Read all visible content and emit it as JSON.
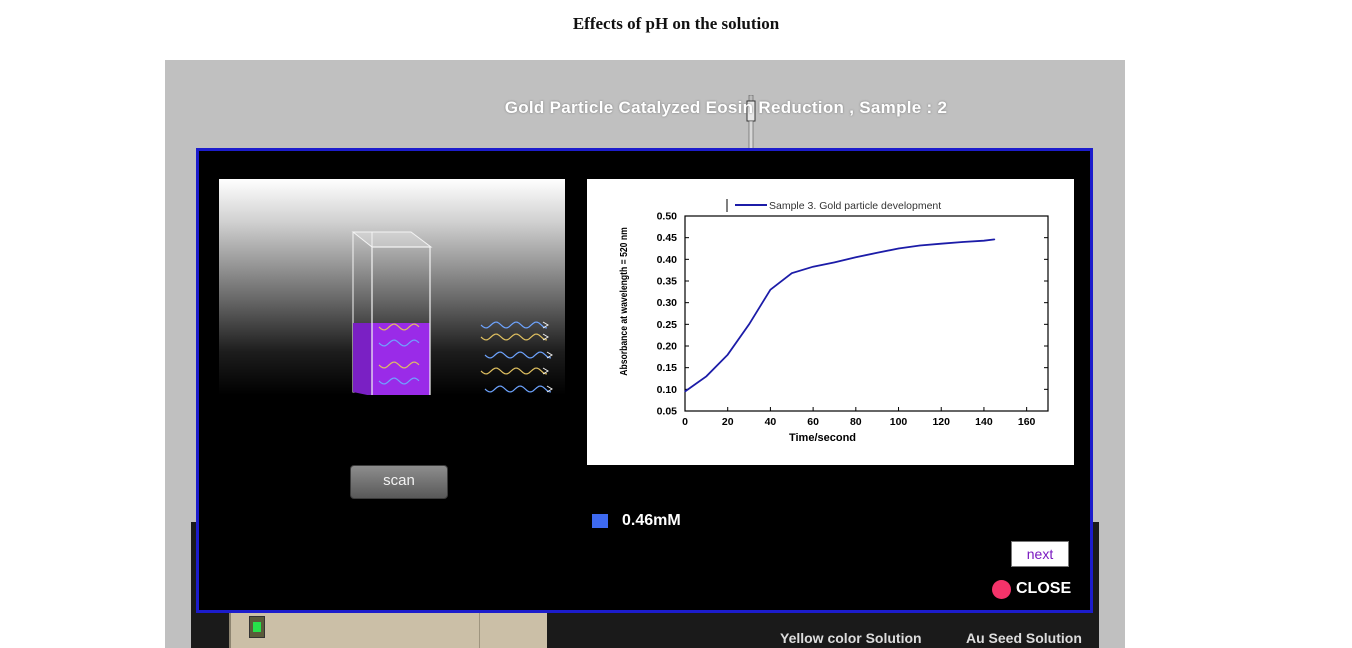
{
  "page": {
    "title": "Effects of pH on the solution"
  },
  "simulation": {
    "title": "Gold Particle Catalyzed Eosin Reduction , Sample : 2",
    "bench_labels": [
      "Yellow color Solution",
      "Au Seed Solution"
    ]
  },
  "popup": {
    "scan_label": "scan",
    "concentration_label": "0.46mM",
    "concentration_swatch_color": "#3e6af0",
    "next_label": "next",
    "close_label": "CLOSE",
    "solution_color": "#9a2be8",
    "border_color": "#1c1ccc"
  },
  "chart_data": {
    "type": "line",
    "title": "",
    "xlabel": "Time/second",
    "ylabel": "Absorbance at wavelength = 520 nm",
    "xlim": [
      0,
      170
    ],
    "ylim": [
      0.05,
      0.5
    ],
    "xticks": [
      0,
      20,
      40,
      60,
      80,
      100,
      120,
      140,
      160
    ],
    "yticks": [
      0.05,
      0.1,
      0.15,
      0.2,
      0.25,
      0.3,
      0.35,
      0.4,
      0.45,
      0.5
    ],
    "legend_position": "top",
    "series": [
      {
        "name": "Sample 3. Gold particle development",
        "color": "#1c1ca8",
        "x": [
          0,
          10,
          20,
          30,
          40,
          50,
          60,
          70,
          80,
          90,
          100,
          110,
          120,
          130,
          140,
          145
        ],
        "y": [
          0.095,
          0.13,
          0.18,
          0.25,
          0.33,
          0.368,
          0.383,
          0.393,
          0.405,
          0.415,
          0.425,
          0.432,
          0.436,
          0.44,
          0.443,
          0.446
        ]
      }
    ]
  }
}
